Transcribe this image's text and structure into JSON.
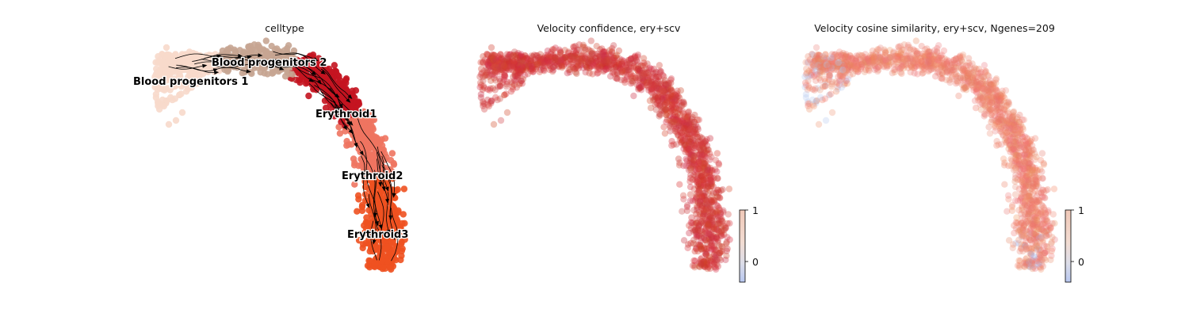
{
  "chart_data": [
    {
      "type": "scatter",
      "title": "celltype",
      "categories": [
        "Blood progenitors 1",
        "Blood progenitors 2",
        "Erythroid1",
        "Erythroid2",
        "Erythroid3"
      ],
      "category_colors": [
        "#f7d9cb",
        "#c7a592",
        "#c41420",
        "#ee7460",
        "#ee5120"
      ],
      "overlay": "velocity streamlines",
      "grid": false,
      "axes_visible": false
    },
    {
      "type": "scatter",
      "title": "Velocity confidence, ery+scv",
      "colormap": "coolwarm",
      "colorbar": {
        "ticks": [
          0,
          1
        ],
        "tick_labels": [
          "0",
          "1"
        ],
        "range": [
          -0.35,
          1
        ]
      },
      "value_level": 0.9,
      "grid": false,
      "axes_visible": false
    },
    {
      "type": "scatter",
      "title": "Velocity cosine similarity, ery+scv, Ngenes=209",
      "colormap": "coolwarm",
      "colorbar": {
        "ticks": [
          0,
          1
        ],
        "tick_labels": [
          "0",
          "1"
        ],
        "range": [
          -0.35,
          1
        ]
      },
      "value_level": 0.6,
      "grid": false,
      "axes_visible": false
    }
  ]
}
